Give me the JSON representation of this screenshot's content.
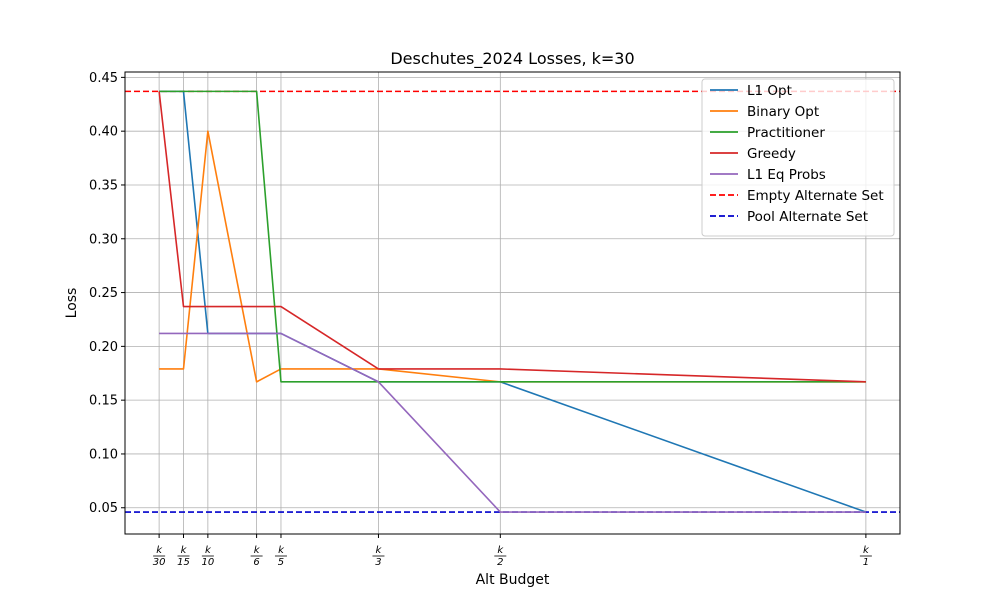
{
  "chart_data": {
    "type": "line",
    "title": "Deschutes_2024 Losses, k=30",
    "xlabel": "Alt Budget",
    "ylabel": "Loss",
    "x": [
      1,
      2,
      3,
      5,
      6,
      10,
      15,
      30
    ],
    "x_ticks": [
      {
        "value": 1,
        "num": "k",
        "den": "30"
      },
      {
        "value": 2,
        "num": "k",
        "den": "15"
      },
      {
        "value": 3,
        "num": "k",
        "den": "10"
      },
      {
        "value": 5,
        "num": "k",
        "den": "6"
      },
      {
        "value": 6,
        "num": "k",
        "den": "5"
      },
      {
        "value": 10,
        "num": "k",
        "den": "3"
      },
      {
        "value": 15,
        "num": "k",
        "den": "2"
      },
      {
        "value": 30,
        "num": "k",
        "den": "1"
      }
    ],
    "xlim": [
      -0.4,
      31.4
    ],
    "ylim": [
      0.0256,
      0.455
    ],
    "y_ticks": [
      "0.05",
      "0.10",
      "0.15",
      "0.20",
      "0.25",
      "0.30",
      "0.35",
      "0.40",
      "0.45"
    ],
    "grid": true,
    "legend_position": "upper right",
    "series": [
      {
        "name": "L1 Opt",
        "color": "#1f77b4",
        "dash": "solid",
        "values": [
          0.437,
          0.437,
          0.212,
          0.212,
          0.212,
          0.167,
          0.167,
          0.046
        ]
      },
      {
        "name": "Binary Opt",
        "color": "#ff7f0e",
        "dash": "solid",
        "values": [
          0.179,
          0.179,
          0.4,
          0.167,
          0.179,
          0.179,
          0.167,
          0.167
        ]
      },
      {
        "name": "Practitioner",
        "color": "#2ca02c",
        "dash": "solid",
        "values": [
          0.437,
          0.437,
          0.437,
          0.437,
          0.167,
          0.167,
          0.167,
          0.167
        ]
      },
      {
        "name": "Greedy",
        "color": "#d62728",
        "dash": "solid",
        "values": [
          0.437,
          0.237,
          0.237,
          0.237,
          0.237,
          0.179,
          0.179,
          0.167
        ]
      },
      {
        "name": "L1 Eq Probs",
        "color": "#9467bd",
        "dash": "solid",
        "values": [
          0.212,
          0.212,
          0.212,
          0.212,
          0.212,
          0.167,
          0.046,
          0.046
        ]
      }
    ],
    "reference_lines": [
      {
        "name": "Empty Alternate Set",
        "color": "#ff0000",
        "dash": "dashed",
        "y": 0.437
      },
      {
        "name": "Pool Alternate Set",
        "color": "#0000cc",
        "dash": "dashed",
        "y": 0.046
      }
    ]
  }
}
